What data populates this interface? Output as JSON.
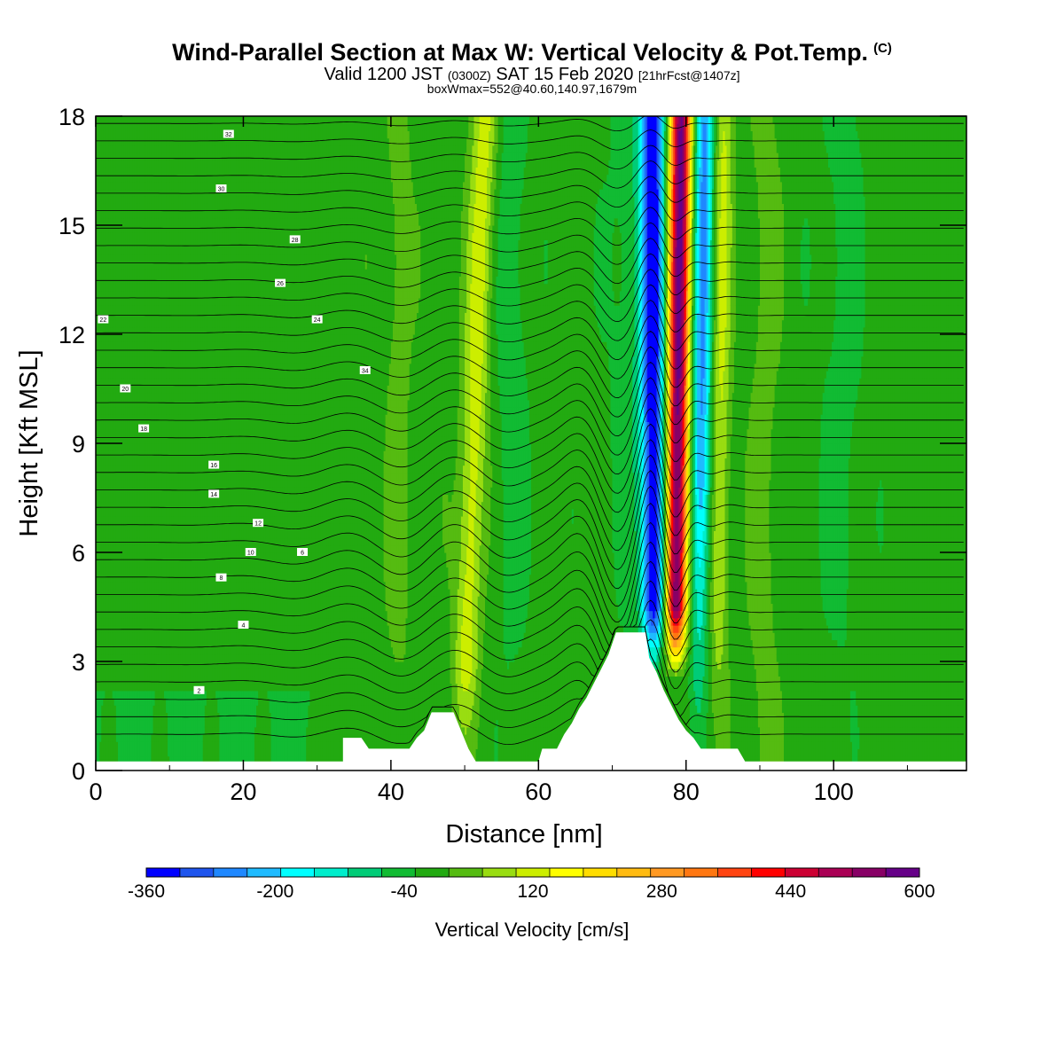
{
  "header": {
    "title": "Wind-Parallel Section at Max W: Vertical Velocity & Pot.Temp.",
    "title_mark": "(C)",
    "valid_prefix": "Valid 1200 JST",
    "valid_utc": "(0300Z)",
    "valid_date": "SAT 15 Feb 2020",
    "forecast": "[21hrFcst@1407z]",
    "box_info": "boxWmax=552@40.60,140.97,1679m"
  },
  "chart_data": {
    "type": "heatmap",
    "xlabel": "Distance [nm]",
    "ylabel": "Height [Kft MSL]",
    "xlim": [
      0,
      118
    ],
    "ylim": [
      0,
      18
    ],
    "x_ticks": [
      0,
      20,
      40,
      60,
      80,
      100
    ],
    "y_ticks": [
      0,
      3,
      6,
      9,
      12,
      15,
      18
    ],
    "colorbar": {
      "label": "Vertical Velocity [cm/s]",
      "min": -360,
      "max": 600,
      "step": 40,
      "tick_labels": [
        "-360",
        "-200",
        "-40",
        "120",
        "280",
        "440",
        "600"
      ],
      "colors": [
        "#0000ff",
        "#1f55ee",
        "#1f88ff",
        "#1fbbff",
        "#00ffff",
        "#00eecc",
        "#00cc77",
        "#11bb33",
        "#22aa11",
        "#55bb11",
        "#99dd11",
        "#ccee00",
        "#ffff00",
        "#ffdd00",
        "#ffbb11",
        "#ff9922",
        "#ff7711",
        "#ff4411",
        "#ff0000",
        "#cc0033",
        "#aa0055",
        "#880066",
        "#660088"
      ]
    },
    "terrain_kft": [
      [
        0,
        0.25
      ],
      [
        33.5,
        0.25
      ],
      [
        33.5,
        0.9
      ],
      [
        36,
        0.9
      ],
      [
        37,
        0.6
      ],
      [
        42.5,
        0.6
      ],
      [
        43.5,
        0.9
      ],
      [
        44.5,
        1.1
      ],
      [
        45.5,
        1.6
      ],
      [
        48.5,
        1.6
      ],
      [
        49.5,
        1.1
      ],
      [
        50.5,
        0.6
      ],
      [
        51.5,
        0.25
      ],
      [
        60,
        0.25
      ],
      [
        60.5,
        0.6
      ],
      [
        62.5,
        0.6
      ],
      [
        63.5,
        1.0
      ],
      [
        64.5,
        1.3
      ],
      [
        65.5,
        1.7
      ],
      [
        66.5,
        2.0
      ],
      [
        67.5,
        2.4
      ],
      [
        68.5,
        2.8
      ],
      [
        69.5,
        3.2
      ],
      [
        70.5,
        3.8
      ],
      [
        74.5,
        3.8
      ],
      [
        75,
        3.1
      ],
      [
        76,
        2.7
      ],
      [
        77,
        2.2
      ],
      [
        78,
        1.8
      ],
      [
        79,
        1.4
      ],
      [
        80,
        1.1
      ],
      [
        81,
        0.9
      ],
      [
        82,
        0.6
      ],
      [
        87,
        0.6
      ],
      [
        88,
        0.25
      ],
      [
        118,
        0.25
      ]
    ],
    "updraft_zones": [
      {
        "center_nm": 50.5,
        "peak_cm_s": 130,
        "level": "weak updraft"
      },
      {
        "center_nm": 78.5,
        "peak_cm_s": 552,
        "level": "strong updraft"
      },
      {
        "center_nm": 84.5,
        "peak_cm_s": 110,
        "level": "weak updraft"
      }
    ],
    "downdraft_zones": [
      {
        "center_nm": 74.5,
        "min_cm_s": -330,
        "level": "strong downdraft"
      },
      {
        "center_nm": 82.0,
        "min_cm_s": -240,
        "level": "downdraft"
      }
    ],
    "theta_contour_labels": [
      "2",
      "4",
      "6",
      "8",
      "10",
      "12",
      "14",
      "16",
      "18",
      "20",
      "22",
      "24",
      "26",
      "28",
      "30",
      "32",
      "34"
    ]
  }
}
